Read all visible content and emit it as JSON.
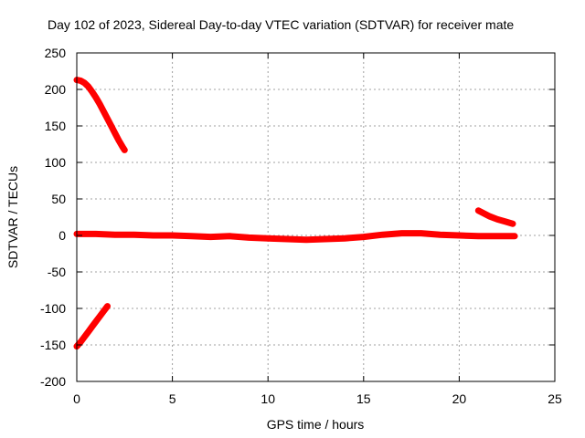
{
  "chart_data": {
    "type": "scatter",
    "title": "Day 102 of 2023, Sidereal Day-to-day VTEC variation (SDTVAR) for receiver mate",
    "xlabel": "GPS time / hours",
    "ylabel": "SDTVAR / TECUs",
    "xlim": [
      0,
      25
    ],
    "ylim": [
      -200,
      250
    ],
    "xticks": [
      0,
      5,
      10,
      15,
      20,
      25
    ],
    "yticks": [
      -200,
      -150,
      -100,
      -50,
      0,
      50,
      100,
      150,
      200,
      250
    ],
    "grid": true,
    "legend": "none",
    "series_color": "#ff0000",
    "series": [
      {
        "name": "upper-left-arc",
        "x": [
          0,
          0.2,
          0.4,
          0.6,
          0.8,
          1.0,
          1.2,
          1.4,
          1.6,
          1.8,
          2.0,
          2.2,
          2.4,
          2.5
        ],
        "values": [
          213,
          212,
          209,
          204,
          197,
          189,
          180,
          170,
          160,
          150,
          140,
          130,
          121,
          117
        ]
      },
      {
        "name": "lower-left-arc",
        "x": [
          0,
          0.2,
          0.4,
          0.6,
          0.8,
          1.0,
          1.2,
          1.4,
          1.6
        ],
        "values": [
          -152,
          -146,
          -139,
          -132,
          -125,
          -118,
          -111,
          -104,
          -97
        ]
      },
      {
        "name": "main-trace",
        "x": [
          0,
          1,
          2,
          3,
          4,
          5,
          6,
          7,
          8,
          9,
          10,
          11,
          12,
          13,
          14,
          15,
          16,
          17,
          18,
          19,
          20,
          21,
          22,
          22.9
        ],
        "values": [
          2,
          2,
          1,
          1,
          0,
          0,
          -1,
          -2,
          -1,
          -3,
          -4,
          -5,
          -6,
          -5,
          -4,
          -2,
          1,
          3,
          3,
          1,
          0,
          -1,
          -1,
          -1
        ]
      },
      {
        "name": "late-arc",
        "x": [
          21.0,
          21.3,
          21.6,
          22.0,
          22.4,
          22.8
        ],
        "values": [
          34,
          30,
          26,
          22,
          19,
          16
        ]
      }
    ]
  }
}
